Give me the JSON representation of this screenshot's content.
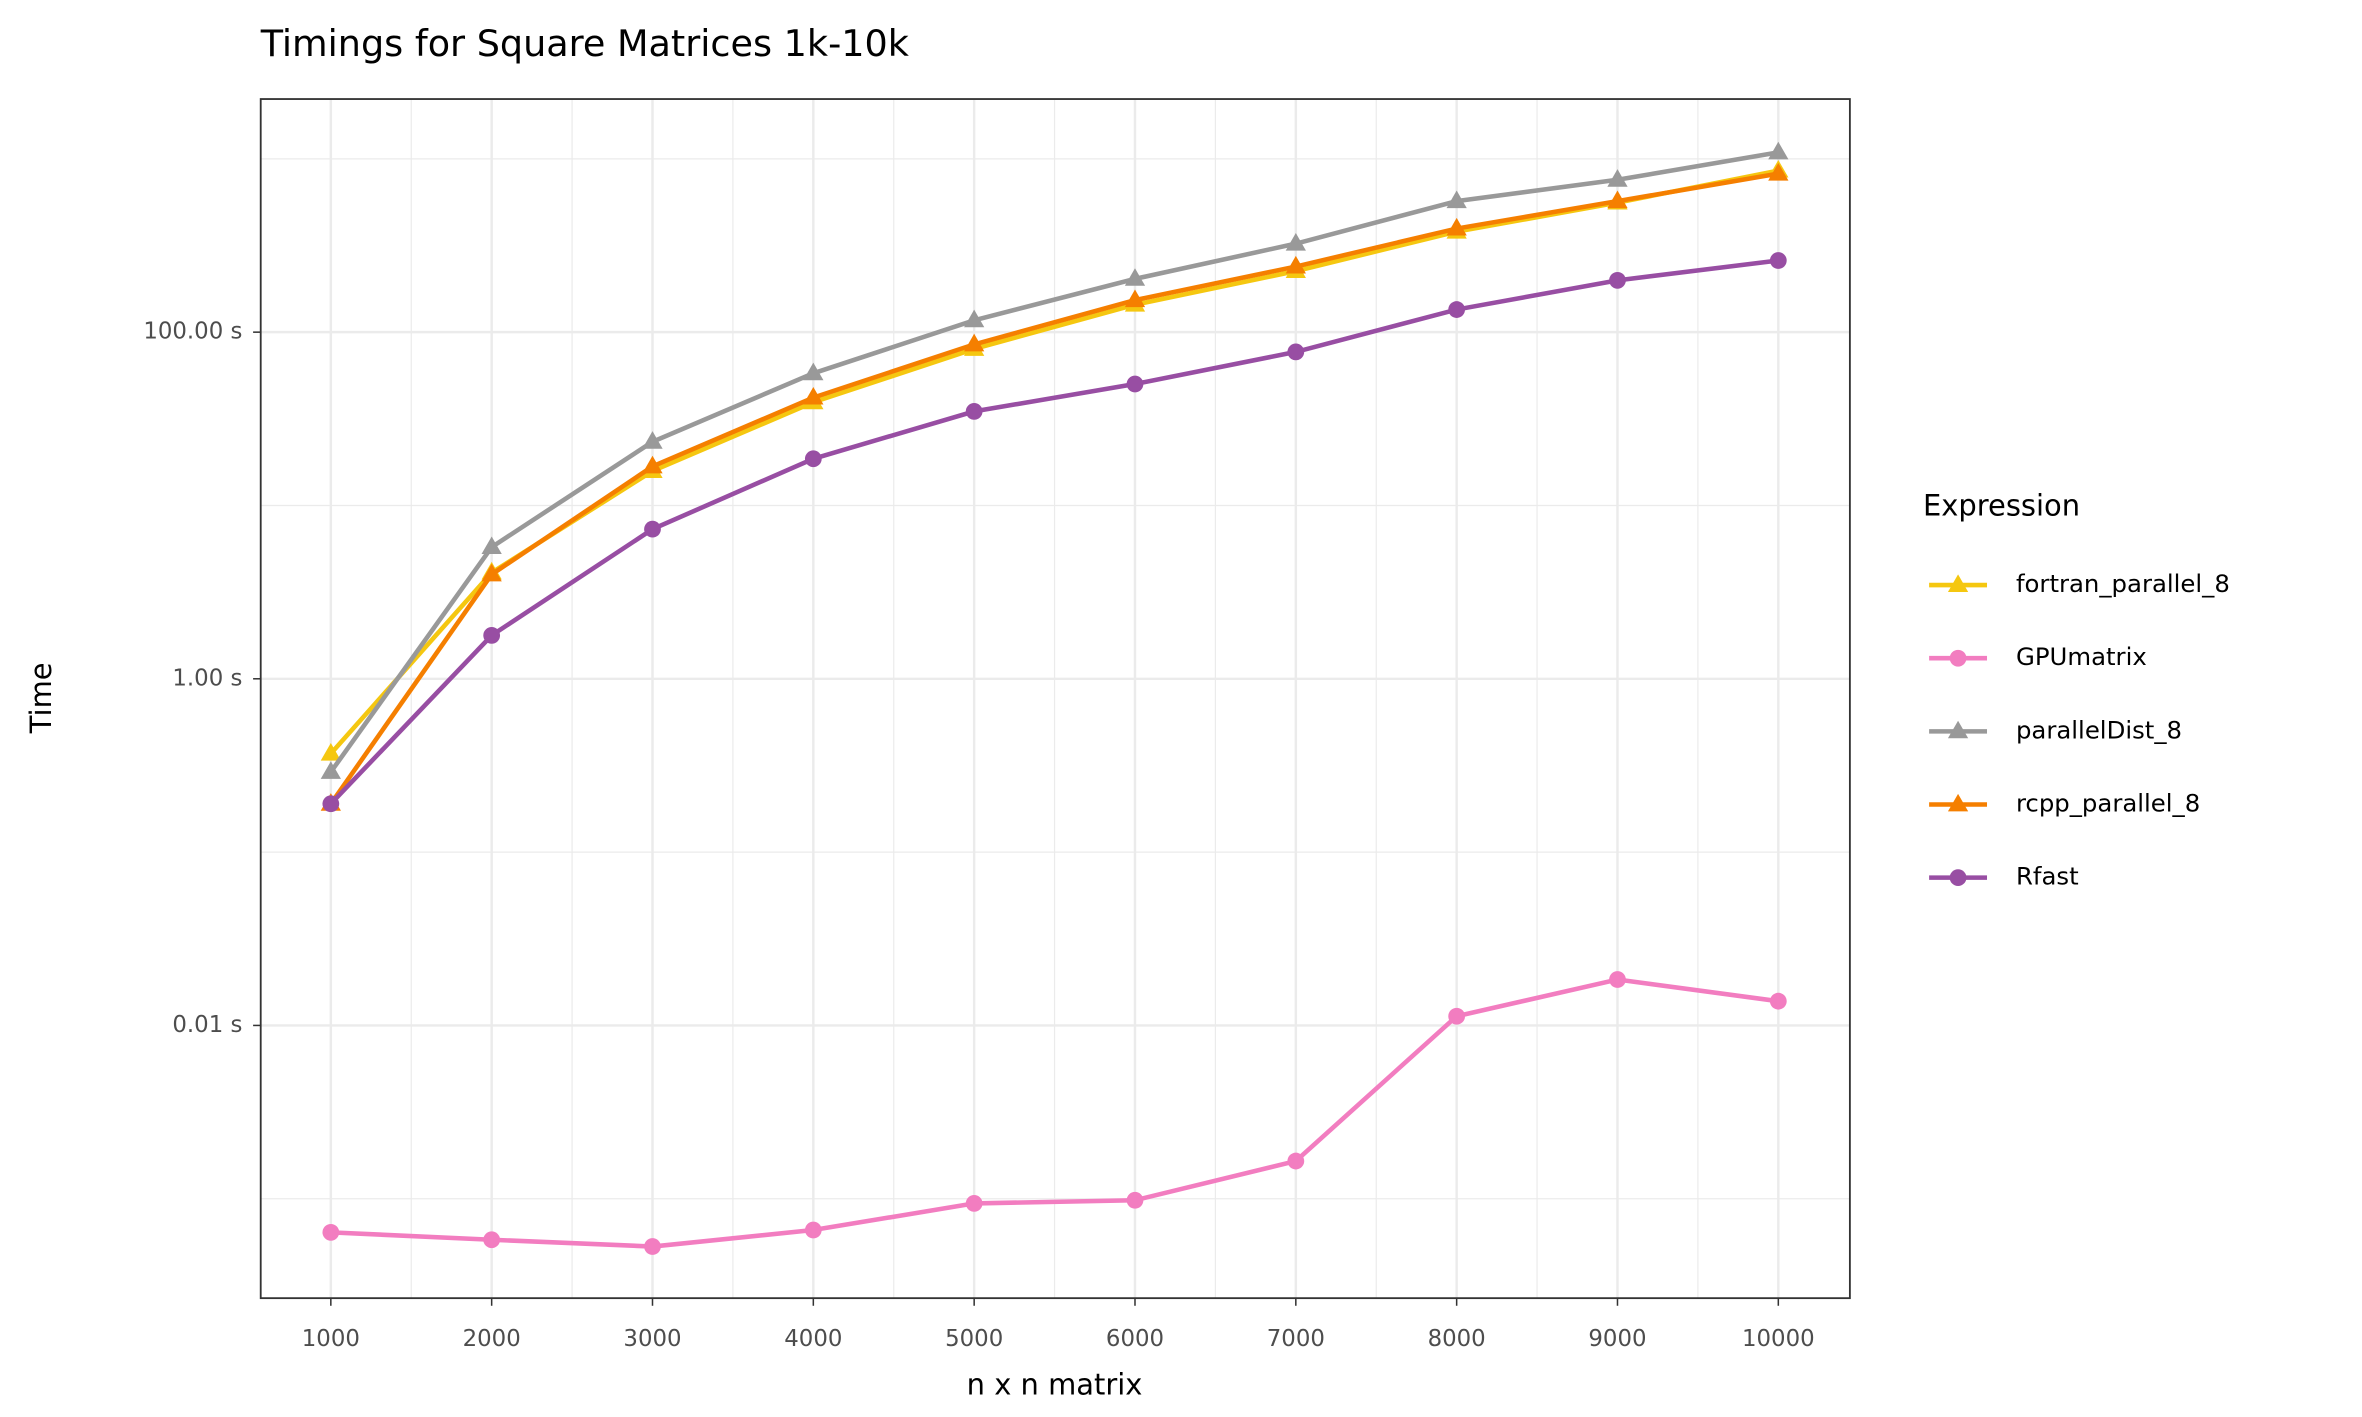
{
  "chart_data": {
    "type": "line",
    "title": "Timings for Square Matrices 1k-10k",
    "x_label": "n x n matrix",
    "y_label": "Time",
    "legend_title": "Expression",
    "legend_position": "right",
    "log_y": true,
    "grid": true,
    "x": [
      1000,
      2000,
      3000,
      4000,
      5000,
      6000,
      7000,
      8000,
      9000,
      10000
    ],
    "xlim": [
      564,
      10445
    ],
    "xticks": [
      1000,
      2000,
      3000,
      4000,
      5000,
      6000,
      7000,
      8000,
      9000,
      10000
    ],
    "ylim": [
      0.000267,
      2213
    ],
    "yticks": [
      {
        "value": 0.01,
        "label": "0.01 s"
      },
      {
        "value": 1,
        "label": "1.00 s"
      },
      {
        "value": 100,
        "label": "100.00 s"
      }
    ],
    "series": [
      {
        "name": "fortran_parallel_8",
        "color": "#F5C710",
        "shape": "triangle",
        "values": [
          0.37,
          4.1,
          15.8,
          39.4,
          80,
          144,
          225,
          380,
          559,
          855
        ]
      },
      {
        "name": "GPUmatrix",
        "color": "#F27DC0",
        "shape": "circle",
        "values": [
          0.00064,
          0.00058,
          0.00053,
          0.00066,
          0.00094,
          0.00098,
          0.00165,
          0.0113,
          0.0184,
          0.0138
        ]
      },
      {
        "name": "parallelDist_8",
        "color": "#999999",
        "shape": "triangle",
        "values": [
          0.29,
          5.75,
          23.3,
          57.9,
          117,
          203,
          324,
          570,
          757,
          1089
        ]
      },
      {
        "name": "rcpp_parallel_8",
        "color": "#F57F00",
        "shape": "triangle",
        "values": [
          0.19,
          4.0,
          16.8,
          41.9,
          85,
          153,
          239,
          396,
          570,
          821
        ]
      },
      {
        "name": "Rfast",
        "color": "#984EA3",
        "shape": "circle",
        "values": [
          0.19,
          1.78,
          7.3,
          18.6,
          34.9,
          50.2,
          76.9,
          135,
          199,
          259
        ]
      }
    ]
  }
}
